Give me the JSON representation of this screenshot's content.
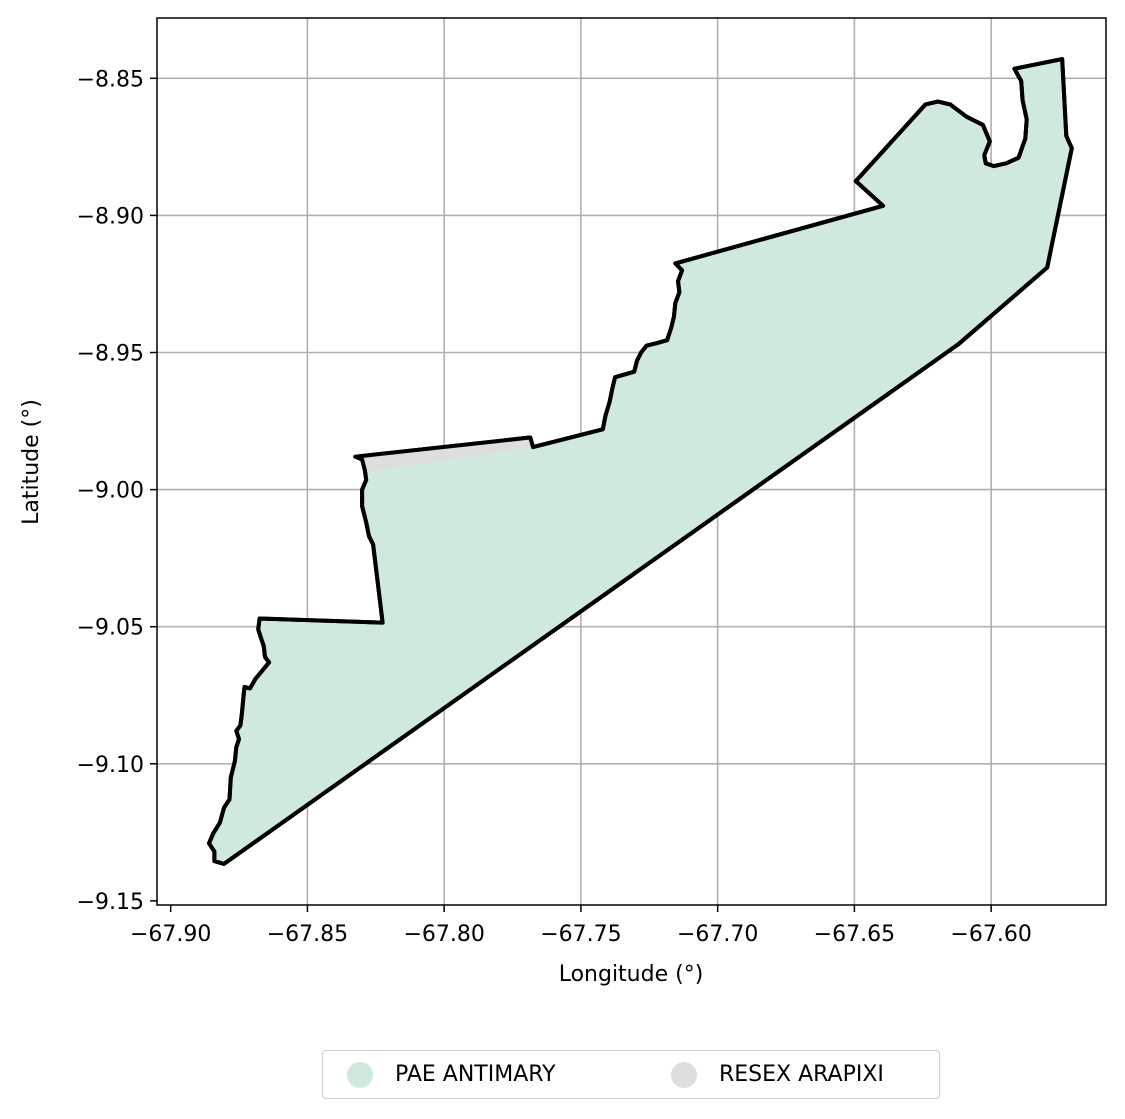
{
  "chart_data": {
    "type": "map",
    "xlabel": "Longitude (°)",
    "ylabel": "Latitude (°)",
    "xlim": [
      -67.905,
      -67.558
    ],
    "ylim": [
      -9.1515,
      -8.828
    ],
    "xticks": [
      -67.9,
      -67.85,
      -67.8,
      -67.75,
      -67.7,
      -67.65,
      -67.6
    ],
    "xtick_labels": [
      "−67.90",
      "−67.85",
      "−67.80",
      "−67.75",
      "−67.70",
      "−67.65",
      "−67.60"
    ],
    "yticks": [
      -8.85,
      -8.9,
      -8.95,
      -9.0,
      -9.05,
      -9.1,
      -9.15
    ],
    "ytick_labels": [
      "−8.85",
      "−8.90",
      "−8.95",
      "−9.00",
      "−9.05",
      "−9.10",
      "−9.15"
    ],
    "grid": true,
    "legend_position": "bottom-center",
    "series": [
      {
        "name": "PAE ANTIMARY",
        "color": "#cfeadd",
        "edge_color": "#000000",
        "polygon": [
          [
            -67.574,
            -8.843
          ],
          [
            -67.5725,
            -8.871
          ],
          [
            -67.5705,
            -8.8755
          ],
          [
            -67.5795,
            -8.919
          ],
          [
            -67.612,
            -8.947
          ],
          [
            -67.8805,
            -9.1365
          ],
          [
            -67.884,
            -9.1355
          ],
          [
            -67.884,
            -9.132
          ],
          [
            -67.886,
            -9.129
          ],
          [
            -67.8845,
            -9.1255
          ],
          [
            -67.882,
            -9.1215
          ],
          [
            -67.8805,
            -9.116
          ],
          [
            -67.8785,
            -9.113
          ],
          [
            -67.878,
            -9.105
          ],
          [
            -67.8765,
            -9.099
          ],
          [
            -67.876,
            -9.094
          ],
          [
            -67.875,
            -9.091
          ],
          [
            -67.876,
            -9.088
          ],
          [
            -67.8745,
            -9.086
          ],
          [
            -67.874,
            -9.082
          ],
          [
            -67.8735,
            -9.077
          ],
          [
            -67.873,
            -9.072
          ],
          [
            -67.871,
            -9.0725
          ],
          [
            -67.869,
            -9.069
          ],
          [
            -67.8665,
            -9.066
          ],
          [
            -67.864,
            -9.063
          ],
          [
            -67.8655,
            -9.061
          ],
          [
            -67.866,
            -9.057
          ],
          [
            -67.867,
            -9.054
          ],
          [
            -67.868,
            -9.051
          ],
          [
            -67.8675,
            -9.047
          ],
          [
            -67.8225,
            -9.0485
          ],
          [
            -67.826,
            -9.02
          ],
          [
            -67.8275,
            -9.017
          ],
          [
            -67.8285,
            -9.012
          ],
          [
            -67.83,
            -9.006
          ],
          [
            -67.83,
            -9.0
          ],
          [
            -67.8285,
            -8.9965
          ],
          [
            -67.829,
            -8.993
          ],
          [
            -67.83,
            -8.989
          ],
          [
            -67.8325,
            -8.988
          ],
          [
            -67.7685,
            -8.981
          ],
          [
            -67.7675,
            -8.9845
          ],
          [
            -67.742,
            -8.978
          ],
          [
            -67.741,
            -8.973
          ],
          [
            -67.7395,
            -8.968
          ],
          [
            -67.7385,
            -8.963
          ],
          [
            -67.7375,
            -8.959
          ],
          [
            -67.734,
            -8.958
          ],
          [
            -67.7305,
            -8.957
          ],
          [
            -67.7295,
            -8.953
          ],
          [
            -67.728,
            -8.95
          ],
          [
            -67.726,
            -8.9475
          ],
          [
            -67.722,
            -8.9465
          ],
          [
            -67.7185,
            -8.9455
          ],
          [
            -67.717,
            -8.941
          ],
          [
            -67.716,
            -8.937
          ],
          [
            -67.7155,
            -8.932
          ],
          [
            -67.714,
            -8.928
          ],
          [
            -67.7145,
            -8.924
          ],
          [
            -67.713,
            -8.92
          ],
          [
            -67.7155,
            -8.9175
          ],
          [
            -67.6395,
            -8.8965
          ],
          [
            -67.6495,
            -8.8875
          ],
          [
            -67.624,
            -8.8595
          ],
          [
            -67.6195,
            -8.8585
          ],
          [
            -67.615,
            -8.8595
          ],
          [
            -67.609,
            -8.864
          ],
          [
            -67.603,
            -8.867
          ],
          [
            -67.6005,
            -8.873
          ],
          [
            -67.6025,
            -8.878
          ],
          [
            -67.602,
            -8.881
          ],
          [
            -67.599,
            -8.882
          ],
          [
            -67.5945,
            -8.881
          ],
          [
            -67.59,
            -8.879
          ],
          [
            -67.5875,
            -8.872
          ],
          [
            -67.587,
            -8.865
          ],
          [
            -67.5885,
            -8.858
          ],
          [
            -67.589,
            -8.851
          ],
          [
            -67.5915,
            -8.8465
          ]
        ]
      },
      {
        "name": "RESEX ARAPIXI",
        "color": "#dedede",
        "edge_color": "#000000",
        "polygon": [
          [
            -67.8325,
            -8.988
          ],
          [
            -67.7685,
            -8.981
          ],
          [
            -67.7675,
            -8.9845
          ],
          [
            -67.829,
            -8.9935
          ],
          [
            -67.83,
            -8.989
          ]
        ]
      }
    ]
  }
}
